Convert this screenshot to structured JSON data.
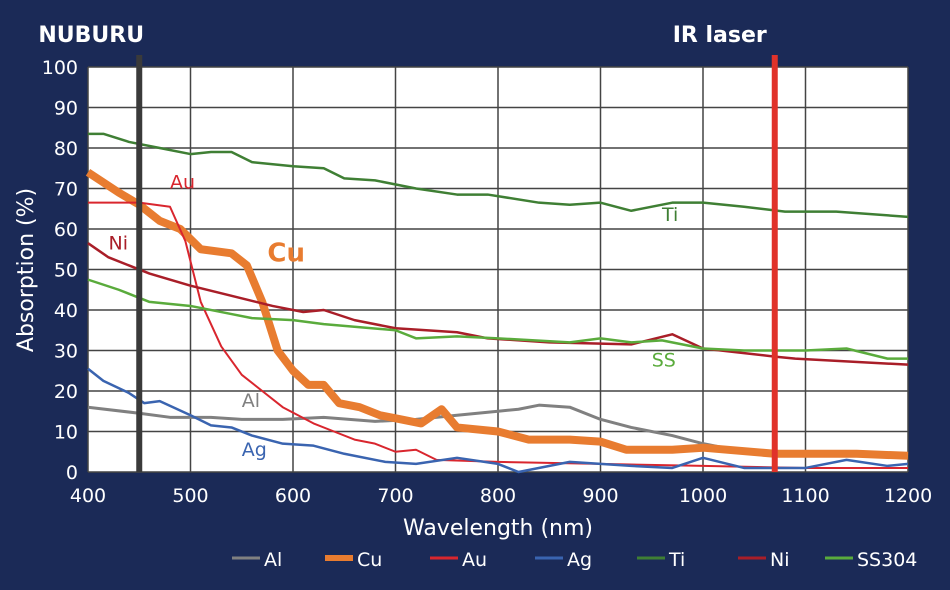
{
  "chart_data": {
    "type": "line",
    "xlabel": "Wavelength (nm)",
    "ylabel": "Absorption (%)",
    "xlim": [
      400,
      1200
    ],
    "ylim": [
      0,
      100
    ],
    "xticks": [
      400,
      500,
      600,
      700,
      800,
      900,
      1000,
      1100,
      1200
    ],
    "yticks": [
      0,
      10,
      20,
      30,
      40,
      50,
      60,
      70,
      80,
      90,
      100
    ],
    "grid": true,
    "legend_placement": "bottom",
    "markers": [
      {
        "label": "NUBURU",
        "x": 450,
        "color": "#3a3a3a"
      },
      {
        "label": "IR laser",
        "x": 1070,
        "color": "#e0322a"
      }
    ],
    "series": [
      {
        "name": "Al",
        "color": "#808080",
        "width": 3,
        "label": "Al",
        "label_at": [
          550,
          16
        ],
        "points": [
          [
            400,
            16
          ],
          [
            450,
            14.5
          ],
          [
            480,
            13.5
          ],
          [
            520,
            13.5
          ],
          [
            550,
            13
          ],
          [
            590,
            13
          ],
          [
            630,
            13.5
          ],
          [
            680,
            12.5
          ],
          [
            720,
            13
          ],
          [
            760,
            14
          ],
          [
            800,
            15
          ],
          [
            820,
            15.5
          ],
          [
            840,
            16.5
          ],
          [
            870,
            16
          ],
          [
            900,
            13
          ],
          [
            930,
            11
          ],
          [
            970,
            9
          ],
          [
            1000,
            7
          ],
          [
            1040,
            5
          ],
          [
            1100,
            5
          ],
          [
            1200,
            4
          ]
        ]
      },
      {
        "name": "Cu",
        "color": "#e87c30",
        "width": 8,
        "label": "Cu",
        "label_at": [
          575,
          52
        ],
        "points": [
          [
            400,
            74
          ],
          [
            430,
            69
          ],
          [
            450,
            66
          ],
          [
            470,
            62
          ],
          [
            490,
            60
          ],
          [
            510,
            55
          ],
          [
            540,
            54
          ],
          [
            555,
            51
          ],
          [
            570,
            42
          ],
          [
            585,
            30
          ],
          [
            600,
            25
          ],
          [
            615,
            21.5
          ],
          [
            630,
            21.5
          ],
          [
            645,
            17
          ],
          [
            665,
            16
          ],
          [
            685,
            14
          ],
          [
            705,
            13
          ],
          [
            725,
            12
          ],
          [
            745,
            15.5
          ],
          [
            760,
            11
          ],
          [
            800,
            10
          ],
          [
            830,
            8
          ],
          [
            870,
            8
          ],
          [
            900,
            7.5
          ],
          [
            925,
            5.5
          ],
          [
            970,
            5.5
          ],
          [
            1000,
            6
          ],
          [
            1070,
            4.5
          ],
          [
            1100,
            4.5
          ],
          [
            1150,
            4.5
          ],
          [
            1200,
            4
          ]
        ]
      },
      {
        "name": "Au",
        "color": "#d9262e",
        "width": 2,
        "label": "Au",
        "label_at": [
          480,
          70
        ],
        "points": [
          [
            400,
            66.5
          ],
          [
            450,
            66.5
          ],
          [
            480,
            65.5
          ],
          [
            495,
            57
          ],
          [
            510,
            42
          ],
          [
            530,
            31
          ],
          [
            550,
            24
          ],
          [
            570,
            20
          ],
          [
            590,
            16
          ],
          [
            620,
            12
          ],
          [
            640,
            10
          ],
          [
            660,
            8
          ],
          [
            680,
            7
          ],
          [
            700,
            5
          ],
          [
            720,
            5.5
          ],
          [
            740,
            3
          ],
          [
            800,
            2.5
          ],
          [
            900,
            2
          ],
          [
            1000,
            1.5
          ],
          [
            1100,
            1
          ],
          [
            1200,
            1
          ]
        ]
      },
      {
        "name": "Ag",
        "color": "#3a64b0",
        "width": 2.5,
        "label": "Ag",
        "label_at": [
          550,
          4
        ],
        "points": [
          [
            400,
            25.5
          ],
          [
            415,
            22.5
          ],
          [
            440,
            19.5
          ],
          [
            455,
            17
          ],
          [
            470,
            17.5
          ],
          [
            500,
            14
          ],
          [
            520,
            11.5
          ],
          [
            540,
            11
          ],
          [
            560,
            9
          ],
          [
            590,
            7
          ],
          [
            620,
            6.5
          ],
          [
            650,
            4.5
          ],
          [
            690,
            2.5
          ],
          [
            720,
            2
          ],
          [
            760,
            3.5
          ],
          [
            800,
            2
          ],
          [
            820,
            0
          ],
          [
            870,
            2.5
          ],
          [
            900,
            2
          ],
          [
            930,
            1.5
          ],
          [
            970,
            1
          ],
          [
            1000,
            3.5
          ],
          [
            1040,
            1
          ],
          [
            1100,
            1
          ],
          [
            1140,
            3
          ],
          [
            1180,
            1.5
          ],
          [
            1200,
            2
          ]
        ]
      },
      {
        "name": "Ti",
        "color": "#3f7f34",
        "width": 2.5,
        "label": "Ti",
        "label_at": [
          960,
          62
        ],
        "points": [
          [
            400,
            83.5
          ],
          [
            415,
            83.5
          ],
          [
            440,
            81.5
          ],
          [
            470,
            80
          ],
          [
            500,
            78.5
          ],
          [
            520,
            79
          ],
          [
            540,
            79
          ],
          [
            560,
            76.5
          ],
          [
            600,
            75.5
          ],
          [
            630,
            75
          ],
          [
            650,
            72.5
          ],
          [
            680,
            72
          ],
          [
            720,
            70
          ],
          [
            760,
            68.5
          ],
          [
            790,
            68.5
          ],
          [
            840,
            66.5
          ],
          [
            870,
            66
          ],
          [
            900,
            66.5
          ],
          [
            930,
            64.5
          ],
          [
            970,
            66.5
          ],
          [
            1000,
            66.5
          ],
          [
            1040,
            65.5
          ],
          [
            1080,
            64.3
          ],
          [
            1130,
            64.3
          ],
          [
            1200,
            63
          ]
        ]
      },
      {
        "name": "Ni",
        "color": "#a91e28",
        "width": 2.5,
        "label": "Ni",
        "label_at": [
          420,
          55
        ],
        "points": [
          [
            400,
            56.5
          ],
          [
            420,
            53
          ],
          [
            440,
            51
          ],
          [
            460,
            49
          ],
          [
            500,
            46
          ],
          [
            540,
            43.5
          ],
          [
            580,
            41
          ],
          [
            610,
            39.5
          ],
          [
            630,
            40
          ],
          [
            660,
            37.5
          ],
          [
            700,
            35.5
          ],
          [
            760,
            34.5
          ],
          [
            790,
            33
          ],
          [
            850,
            32
          ],
          [
            930,
            31.5
          ],
          [
            970,
            34
          ],
          [
            1000,
            30.5
          ],
          [
            1070,
            28.5
          ],
          [
            1090,
            28
          ],
          [
            1200,
            26.5
          ]
        ]
      },
      {
        "name": "SS304",
        "color": "#5aab3c",
        "width": 2.5,
        "label": "SS",
        "label_at": [
          950,
          26
        ],
        "points": [
          [
            400,
            47.5
          ],
          [
            430,
            45
          ],
          [
            460,
            42
          ],
          [
            500,
            41
          ],
          [
            540,
            39
          ],
          [
            560,
            38
          ],
          [
            600,
            37.5
          ],
          [
            630,
            36.5
          ],
          [
            700,
            35
          ],
          [
            720,
            33
          ],
          [
            760,
            33.5
          ],
          [
            800,
            33
          ],
          [
            870,
            32
          ],
          [
            900,
            33
          ],
          [
            930,
            32
          ],
          [
            960,
            32.5
          ],
          [
            1000,
            30.5
          ],
          [
            1040,
            30
          ],
          [
            1100,
            30
          ],
          [
            1140,
            30.5
          ],
          [
            1180,
            28
          ],
          [
            1200,
            28
          ]
        ]
      }
    ]
  }
}
